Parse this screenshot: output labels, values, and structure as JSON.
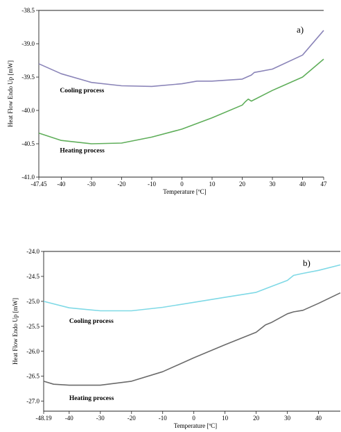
{
  "chart_data": [
    {
      "type": "line",
      "panel_label": "a)",
      "xlabel": "Temperature [ºC]",
      "ylabel": "Heat Flow Endo Up [mW]",
      "xlim": [
        -47.45,
        47
      ],
      "ylim": [
        -41.0,
        -38.5
      ],
      "xticks": [
        -47.45,
        -40,
        -30,
        -20,
        -10,
        0,
        10,
        20,
        30,
        40,
        47
      ],
      "xtick_labels": [
        "-47.45",
        "-40",
        "-30",
        "-20",
        "-10",
        "0",
        "10",
        "20",
        "30",
        "40",
        "47"
      ],
      "yticks": [
        -41.0,
        -40.5,
        -40.0,
        -39.5,
        -39.0,
        -38.5
      ],
      "ytick_labels": [
        "-41.0",
        "-40.5",
        "-40.0",
        "-39.5",
        "-39.0",
        "-38.5"
      ],
      "grid": false,
      "series": [
        {
          "color": "#8a84b8",
          "x": [
            -47.45,
            -40,
            -30,
            -20,
            -10,
            0,
            5,
            10,
            20,
            22,
            23,
            24,
            30,
            40,
            47
          ],
          "y": [
            -39.3,
            -39.45,
            -39.58,
            -39.63,
            -39.64,
            -39.6,
            -39.56,
            -39.56,
            -39.53,
            -39.49,
            -39.47,
            -39.43,
            -39.38,
            -39.17,
            -38.8
          ]
        },
        {
          "color": "#5fae5a",
          "x": [
            -47.45,
            -40,
            -30,
            -20,
            -10,
            0,
            10,
            20,
            21,
            22,
            23,
            30,
            40,
            47
          ],
          "y": [
            -40.34,
            -40.45,
            -40.5,
            -40.49,
            -40.4,
            -40.28,
            -40.11,
            -39.92,
            -39.87,
            -39.83,
            -39.86,
            -39.7,
            -39.5,
            -39.23
          ]
        }
      ],
      "annotations": [
        {
          "text": "Cooling process",
          "x": -40,
          "y": -39.73
        },
        {
          "text": "Heating process",
          "x": -40,
          "y": -40.63
        }
      ]
    },
    {
      "type": "line",
      "panel_label": "b)",
      "xlabel": "Temperature [ºC]",
      "ylabel": "Heat Flow Endo Up [mW]",
      "xlim": [
        -48.19,
        47
      ],
      "ylim": [
        -27.2,
        -24.0
      ],
      "xticks": [
        -48.19,
        -40,
        -30,
        -20,
        -10,
        0,
        10,
        20,
        30,
        40
      ],
      "xtick_labels": [
        "-48.19",
        "-40",
        "-30",
        "-20",
        "-10",
        "0",
        "10",
        "20",
        "30",
        "40"
      ],
      "yticks": [
        -27.0,
        -26.5,
        -26.0,
        -25.5,
        -25.0,
        -24.5,
        -24.0
      ],
      "ytick_labels": [
        "-27.0",
        "-26.5",
        "-26.0",
        "-25.5",
        "-25.0",
        "-24.5",
        "-24.0"
      ],
      "grid": false,
      "series": [
        {
          "color": "#7fd9e6",
          "x": [
            -48.19,
            -40,
            -30,
            -20,
            -10,
            0,
            10,
            20,
            25,
            30,
            32,
            35,
            40,
            47
          ],
          "y": [
            -25.0,
            -25.13,
            -25.19,
            -25.19,
            -25.12,
            -25.02,
            -24.92,
            -24.82,
            -24.7,
            -24.58,
            -24.48,
            -24.44,
            -24.38,
            -24.27
          ]
        },
        {
          "color": "#6a6a6a",
          "x": [
            -48.19,
            -45,
            -40,
            -30,
            -20,
            -10,
            0,
            10,
            20,
            23,
            25,
            30,
            32,
            35,
            40,
            47
          ],
          "y": [
            -26.6,
            -26.66,
            -26.68,
            -26.68,
            -26.6,
            -26.41,
            -26.13,
            -25.87,
            -25.62,
            -25.47,
            -25.42,
            -25.25,
            -25.21,
            -25.18,
            -25.04,
            -24.83
          ]
        }
      ],
      "annotations": [
        {
          "text": "Cooling process",
          "x": -40,
          "y": -25.43
        },
        {
          "text": "Heating process",
          "x": -40,
          "y": -26.98
        }
      ]
    }
  ]
}
